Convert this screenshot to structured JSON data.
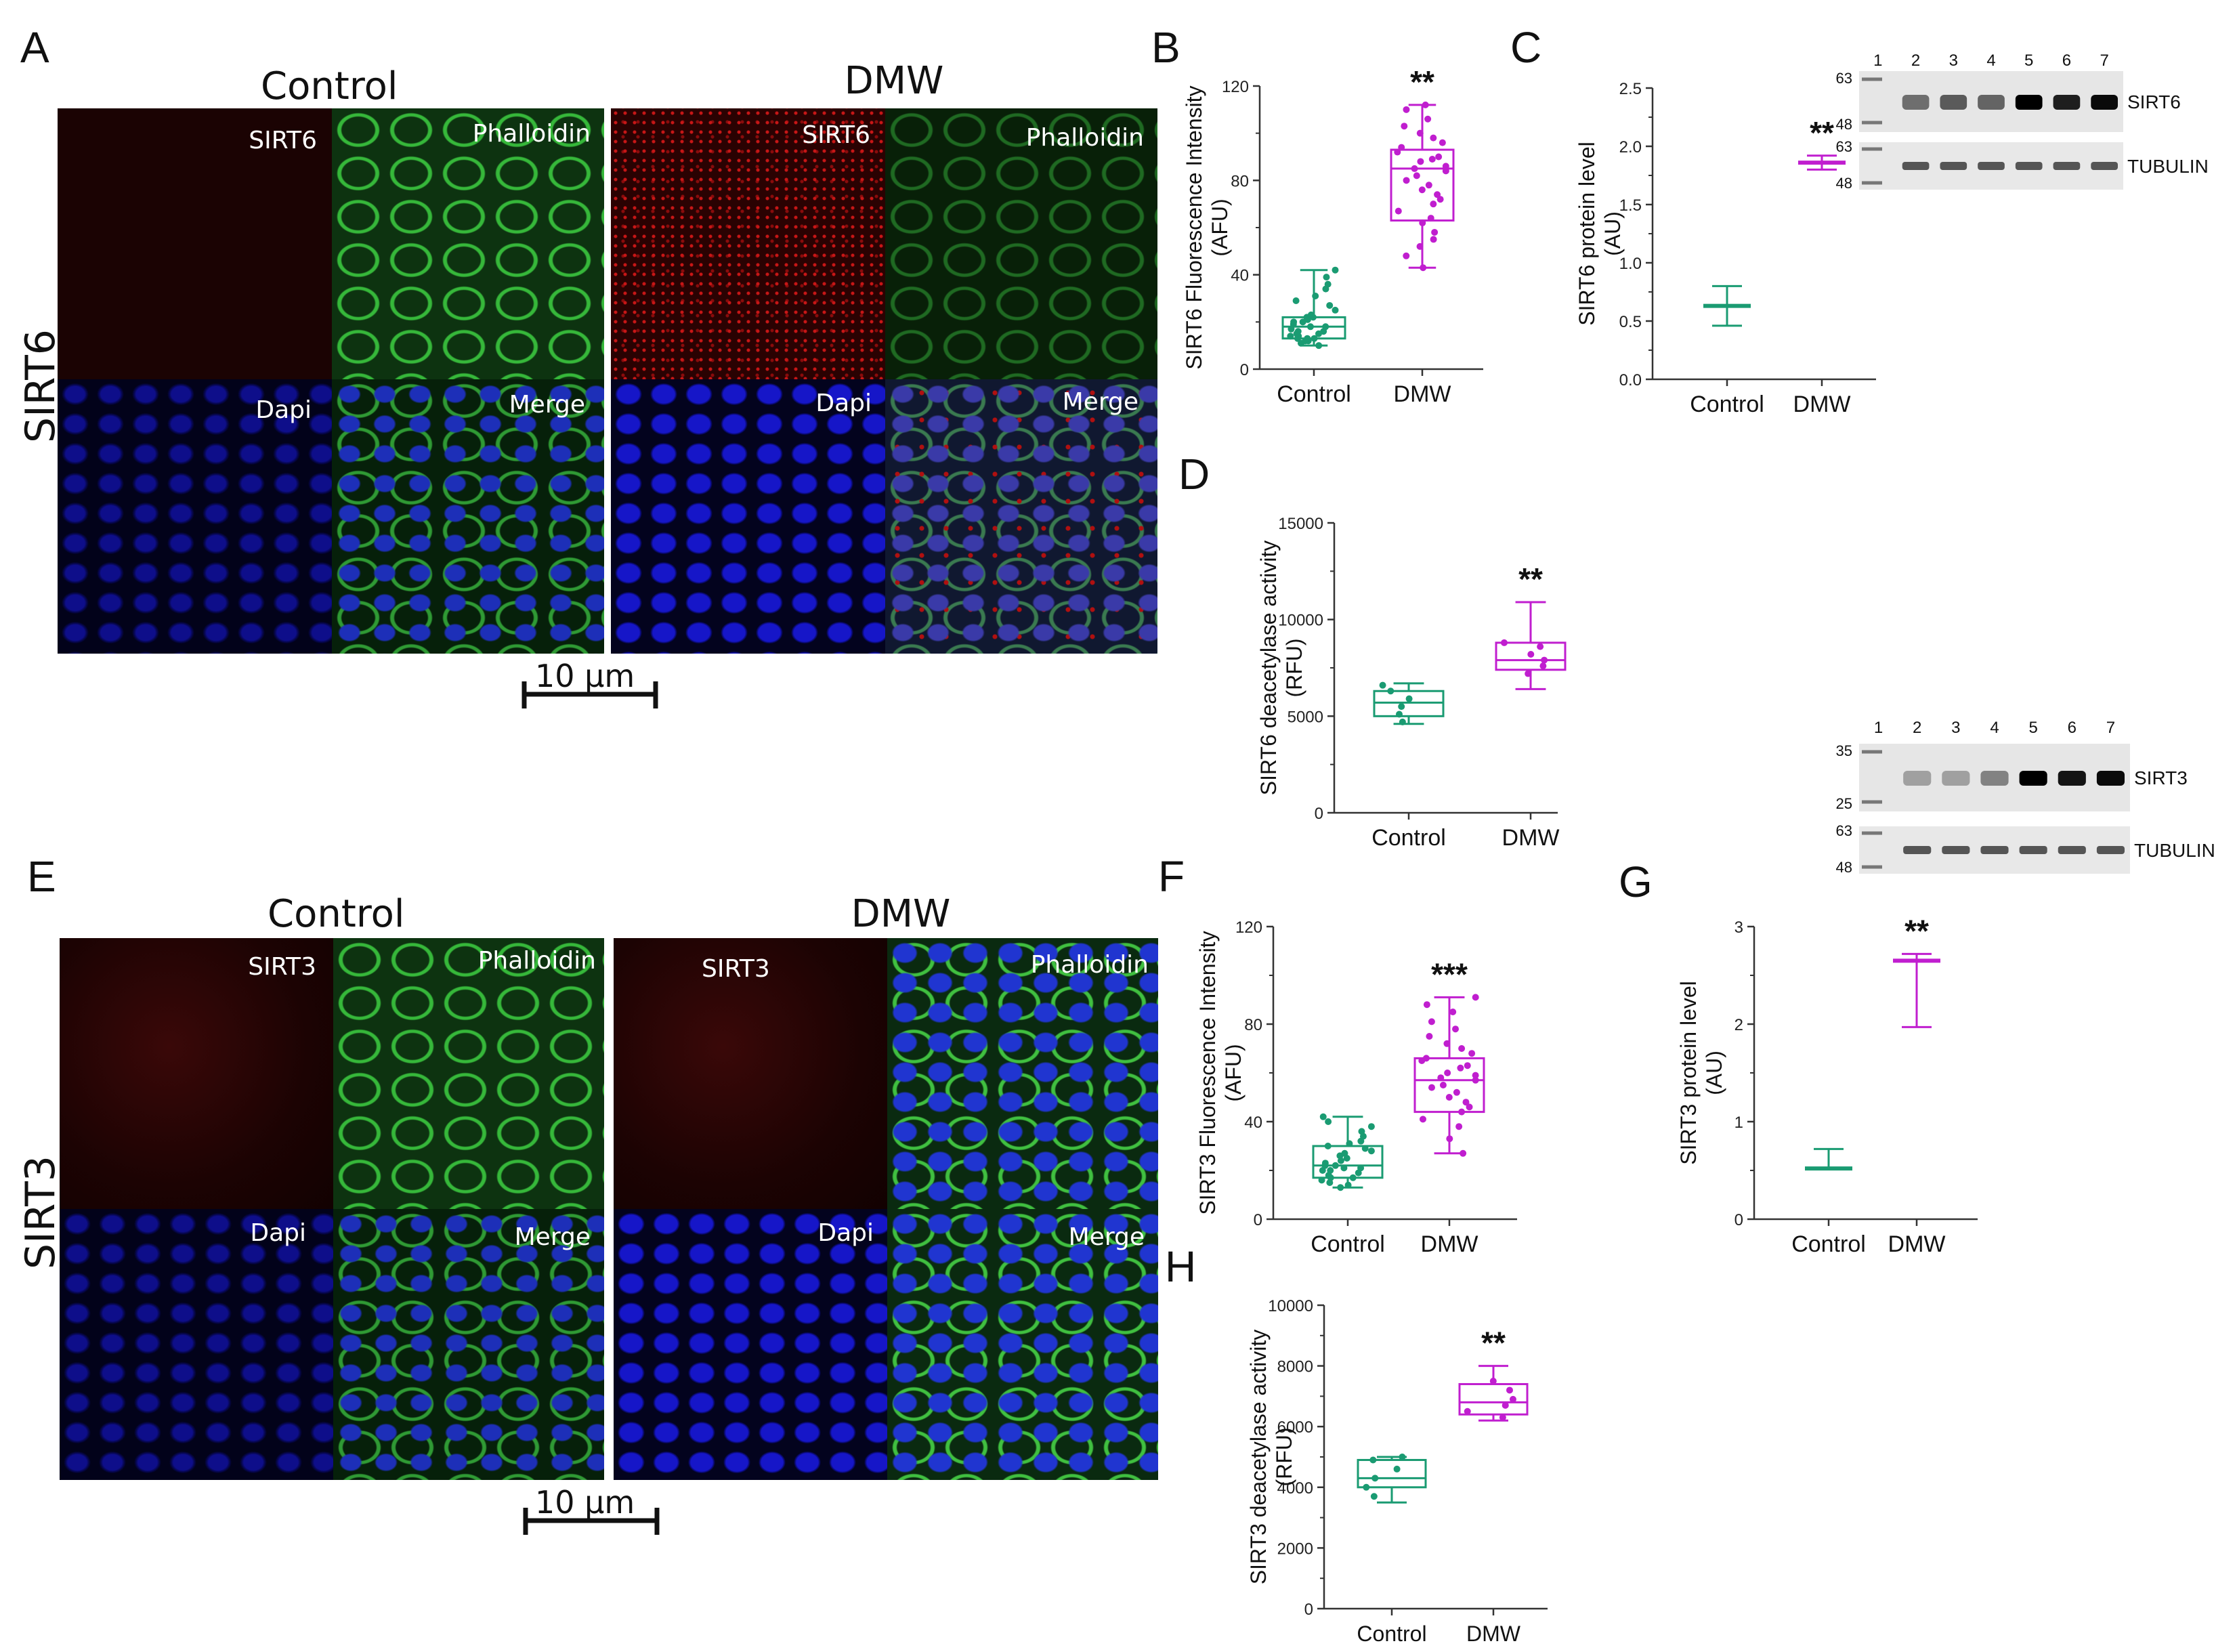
{
  "panel_letters": {
    "A": "A",
    "B": "B",
    "C": "C",
    "D": "D",
    "E": "E",
    "F": "F",
    "G": "G",
    "H": "H"
  },
  "microscopy": {
    "sirt6": {
      "row_label": "SIRT6",
      "control_title": "Control",
      "dmw_title": "DMW",
      "tags": {
        "sirt": "SIRT6",
        "phalloidin": "Phalloidin",
        "dapi": "Dapi",
        "merge": "Merge"
      },
      "scale_bar": "10 µm"
    },
    "sirt3": {
      "row_label": "SIRT3",
      "control_title": "Control",
      "dmw_title": "DMW",
      "tags": {
        "sirt": "SIRT3",
        "phalloidin": "Phalloidin",
        "dapi": "Dapi",
        "merge": "Merge"
      },
      "scale_bar": "10 µm"
    }
  },
  "blots": {
    "sirt6": {
      "lanes": [
        "1",
        "2",
        "3",
        "4",
        "5",
        "6",
        "7"
      ],
      "top_markers": [
        "63",
        "48"
      ],
      "bottom_markers": [
        "63",
        "48"
      ],
      "top_label": "SIRT6",
      "bottom_label": "TUBULIN",
      "top_band_intensity": [
        0.0,
        0.45,
        0.55,
        0.5,
        1.0,
        0.85,
        0.95
      ]
    },
    "sirt3": {
      "lanes": [
        "1",
        "2",
        "3",
        "4",
        "5",
        "6",
        "7"
      ],
      "top_markers": [
        "35",
        "25"
      ],
      "bottom_markers": [
        "63",
        "48"
      ],
      "top_label": "SIRT3",
      "bottom_label": "TUBULIN",
      "top_band_intensity": [
        0.0,
        0.2,
        0.2,
        0.35,
        1.0,
        0.9,
        0.95
      ]
    }
  },
  "chart_data": [
    {
      "panel": "B",
      "type": "box",
      "ylabel": "SIRT6 Fluorescence Intensity (AFU)",
      "ylim": [
        0,
        120
      ],
      "yticks": [
        "0",
        "40",
        "80",
        "120"
      ],
      "categories": [
        "Control",
        "DMW"
      ],
      "colors": [
        "#1a9b72",
        "#c01ecf"
      ],
      "boxes": [
        {
          "min": 10,
          "q1": 13,
          "median": 18,
          "q3": 22,
          "max": 42,
          "points": [
            10,
            11,
            12,
            12,
            13,
            13,
            13,
            14,
            14,
            15,
            15,
            16,
            16,
            17,
            18,
            18,
            19,
            20,
            20,
            21,
            22,
            22,
            23,
            25,
            27,
            29,
            31,
            34,
            36,
            39,
            42
          ]
        },
        {
          "min": 43,
          "q1": 63,
          "median": 85,
          "q3": 93,
          "max": 112,
          "points": [
            43,
            48,
            52,
            55,
            58,
            62,
            64,
            67,
            70,
            72,
            74,
            76,
            78,
            80,
            82,
            84,
            85,
            86,
            88,
            89,
            90,
            92,
            94,
            96,
            98,
            100,
            103,
            106,
            110,
            112
          ]
        }
      ],
      "sig": "**"
    },
    {
      "panel": "C",
      "type": "whisker",
      "ylabel": "SIRT6 protein level (AU)",
      "ylim": [
        0,
        2.5
      ],
      "yticks": [
        "0.0",
        "0.5",
        "1.0",
        "1.5",
        "2.0",
        "2.5"
      ],
      "categories": [
        "Control",
        "DMW"
      ],
      "colors": [
        "#1a9b72",
        "#c01ecf"
      ],
      "boxes": [
        {
          "min": 0.46,
          "median": 0.63,
          "max": 0.8
        },
        {
          "min": 1.8,
          "median": 1.86,
          "max": 1.92
        }
      ],
      "sig": "**"
    },
    {
      "panel": "D",
      "type": "box",
      "ylabel": "SIRT6 deacetylase activity (RFU)",
      "ylim": [
        0,
        15000
      ],
      "yticks": [
        "0",
        "5000",
        "10000",
        "15000"
      ],
      "categories": [
        "Control",
        "DMW"
      ],
      "colors": [
        "#1a9b72",
        "#c01ecf"
      ],
      "boxes": [
        {
          "min": 4600,
          "q1": 5000,
          "median": 5700,
          "q3": 6300,
          "max": 6700,
          "points": [
            4700,
            5100,
            5500,
            5900,
            6300,
            6600
          ]
        },
        {
          "min": 6400,
          "q1": 7400,
          "median": 7900,
          "q3": 8800,
          "max": 10900,
          "points": [
            7200,
            7600,
            7900,
            8200,
            8600,
            8800
          ]
        }
      ],
      "sig": "**"
    },
    {
      "panel": "F",
      "type": "box",
      "ylabel": "SIRT3 Fluorescence Intensity (AFU)",
      "ylim": [
        0,
        120
      ],
      "yticks": [
        "0",
        "40",
        "80",
        "120"
      ],
      "categories": [
        "Control",
        "DMW"
      ],
      "colors": [
        "#1a9b72",
        "#c01ecf"
      ],
      "boxes": [
        {
          "min": 13,
          "q1": 17,
          "median": 22,
          "q3": 30,
          "max": 42,
          "points": [
            13,
            14,
            15,
            16,
            17,
            17,
            18,
            19,
            20,
            20,
            21,
            21,
            22,
            22,
            23,
            24,
            25,
            26,
            27,
            28,
            29,
            30,
            31,
            32,
            34,
            36,
            38,
            40,
            42
          ]
        },
        {
          "min": 27,
          "q1": 44,
          "median": 57,
          "q3": 66,
          "max": 91,
          "points": [
            27,
            33,
            38,
            41,
            44,
            46,
            48,
            50,
            52,
            54,
            55,
            57,
            58,
            59,
            60,
            62,
            63,
            65,
            66,
            68,
            70,
            72,
            75,
            78,
            81,
            85,
            88,
            91
          ]
        }
      ],
      "sig": "***"
    },
    {
      "panel": "G",
      "type": "whisker",
      "ylabel": "SIRT3 protein level (AU)",
      "ylim": [
        0,
        3
      ],
      "yticks": [
        "0",
        "1",
        "2",
        "3"
      ],
      "categories": [
        "Control",
        "DMW"
      ],
      "colors": [
        "#1a9b72",
        "#c01ecf"
      ],
      "boxes": [
        {
          "min": 0.52,
          "median": 0.52,
          "max": 0.72
        },
        {
          "min": 1.97,
          "median": 2.65,
          "max": 2.72
        }
      ],
      "sig": "**"
    },
    {
      "panel": "H",
      "type": "box",
      "ylabel": "SIRT3 deacetylase activity (RFU)",
      "ylim": [
        0,
        10000
      ],
      "yticks": [
        "0",
        "2000",
        "4000",
        "6000",
        "8000",
        "10000"
      ],
      "categories": [
        "Control",
        "DMW"
      ],
      "colors": [
        "#1a9b72",
        "#c01ecf"
      ],
      "boxes": [
        {
          "min": 3500,
          "q1": 4000,
          "median": 4300,
          "q3": 4900,
          "max": 5000,
          "points": [
            3700,
            4000,
            4300,
            4600,
            4900,
            5000
          ]
        },
        {
          "min": 6200,
          "q1": 6400,
          "median": 6800,
          "q3": 7400,
          "max": 8000,
          "points": [
            6300,
            6500,
            6700,
            6900,
            7200,
            7500
          ]
        }
      ],
      "sig": "**"
    }
  ]
}
